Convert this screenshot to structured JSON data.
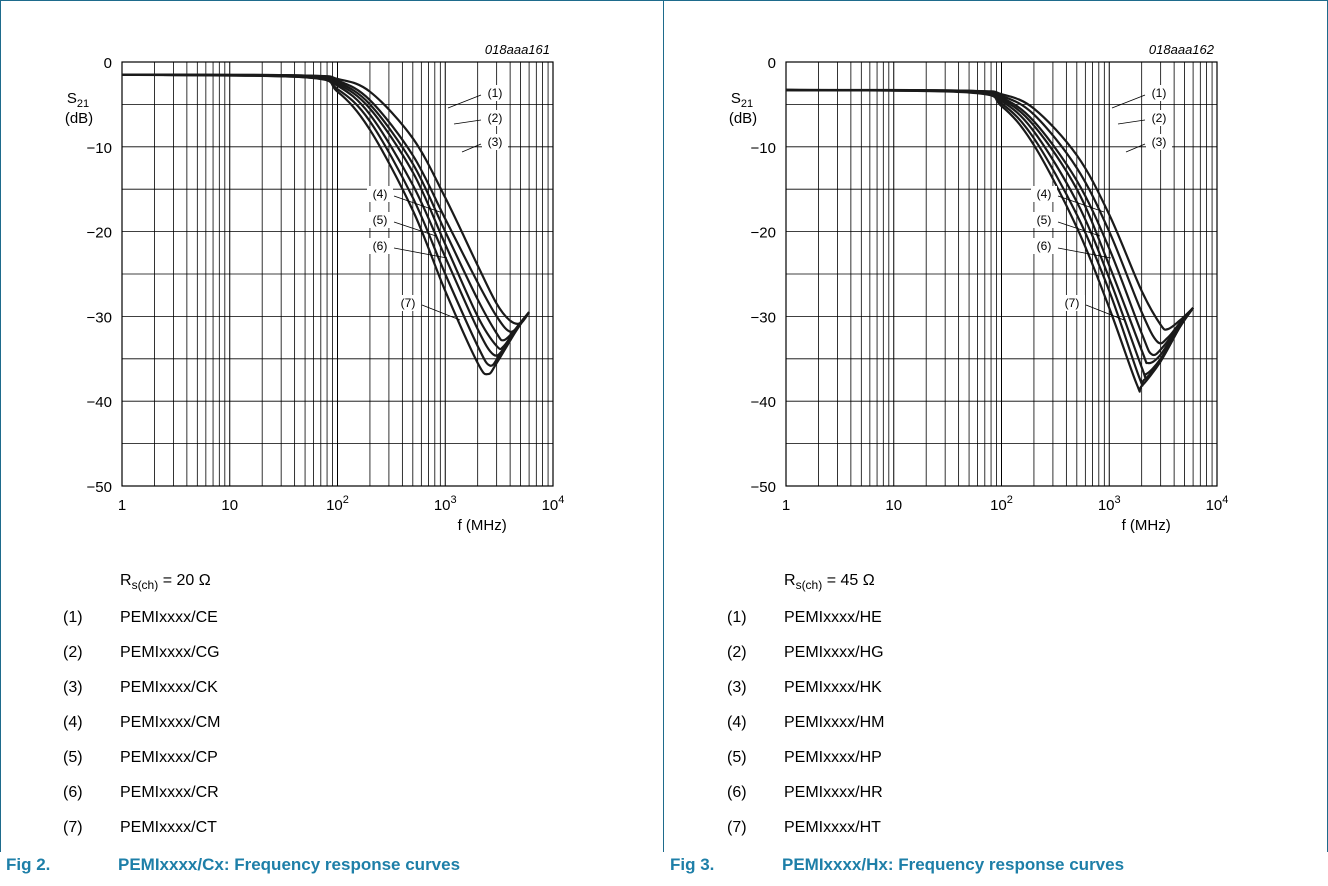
{
  "panels": [
    {
      "code": "018aaa161",
      "rs_value": "= 20 Ω",
      "figure": "Fig 2.",
      "title": "PEMIxxxx/Cx: Frequency response curves",
      "legend": [
        {
          "num": "(1)",
          "name": "PEMIxxxx/CE"
        },
        {
          "num": "(2)",
          "name": "PEMIxxxx/CG"
        },
        {
          "num": "(3)",
          "name": "PEMIxxxx/CK"
        },
        {
          "num": "(4)",
          "name": "PEMIxxxx/CM"
        },
        {
          "num": "(5)",
          "name": "PEMIxxxx/CP"
        },
        {
          "num": "(6)",
          "name": "PEMIxxxx/CR"
        },
        {
          "num": "(7)",
          "name": "PEMIxxxx/CT"
        }
      ]
    },
    {
      "code": "018aaa162",
      "rs_value": "= 45 Ω",
      "figure": "Fig 3.",
      "title": "PEMIxxxx/Hx: Frequency response curves",
      "legend": [
        {
          "num": "(1)",
          "name": "PEMIxxxx/HE"
        },
        {
          "num": "(2)",
          "name": "PEMIxxxx/HG"
        },
        {
          "num": "(3)",
          "name": "PEMIxxxx/HK"
        },
        {
          "num": "(4)",
          "name": "PEMIxxxx/HM"
        },
        {
          "num": "(5)",
          "name": "PEMIxxxx/HP"
        },
        {
          "num": "(6)",
          "name": "PEMIxxxx/HR"
        },
        {
          "num": "(7)",
          "name": "PEMIxxxx/HT"
        }
      ]
    }
  ],
  "common": {
    "rs_symbol": "R",
    "rs_sub": "s(ch)"
  },
  "chart_data": [
    {
      "type": "line",
      "x_scale": "log",
      "xlim": [
        1,
        10000
      ],
      "ylim": [
        -50,
        0
      ],
      "xlabel": "f (MHz)",
      "ylabel": "S21 (dB)",
      "xticks": [
        "1",
        "10",
        "10^2",
        "10^3",
        "10^4"
      ],
      "yticks": [
        "0",
        "−10",
        "−20",
        "−30",
        "−40",
        "−50"
      ],
      "grid": true,
      "series": [
        {
          "name": "(1)",
          "points": [
            [
              1,
              -1.5
            ],
            [
              50,
              -1.6
            ],
            [
              100,
              -2
            ],
            [
              200,
              -3.5
            ],
            [
              500,
              -9
            ],
            [
              1000,
              -16
            ],
            [
              2000,
              -24
            ],
            [
              3000,
              -28.5
            ],
            [
              4000,
              -30.5
            ],
            [
              5000,
              -30.8
            ],
            [
              6000,
              -29.5
            ]
          ]
        },
        {
          "name": "(2)",
          "points": [
            [
              1,
              -1.5
            ],
            [
              50,
              -1.6
            ],
            [
              100,
              -2.2
            ],
            [
              200,
              -4.5
            ],
            [
              500,
              -11
            ],
            [
              1000,
              -18.5
            ],
            [
              2000,
              -26
            ],
            [
              3000,
              -30
            ],
            [
              4000,
              -31.8
            ],
            [
              5000,
              -30.8
            ],
            [
              6000,
              -29.5
            ]
          ]
        },
        {
          "name": "(3)",
          "points": [
            [
              1,
              -1.5
            ],
            [
              50,
              -1.6
            ],
            [
              100,
              -2.4
            ],
            [
              200,
              -5
            ],
            [
              500,
              -12
            ],
            [
              1000,
              -20
            ],
            [
              2000,
              -28
            ],
            [
              3000,
              -32
            ],
            [
              3500,
              -32.8
            ],
            [
              4500,
              -31.5
            ],
            [
              6000,
              -29.5
            ]
          ]
        },
        {
          "name": "(4)",
          "points": [
            [
              1,
              -1.5
            ],
            [
              50,
              -1.7
            ],
            [
              100,
              -2.6
            ],
            [
              200,
              -5.5
            ],
            [
              500,
              -13
            ],
            [
              1000,
              -21.5
            ],
            [
              2000,
              -30
            ],
            [
              3000,
              -33.5
            ],
            [
              3500,
              -33.5
            ],
            [
              4500,
              -31.5
            ],
            [
              6000,
              -29.5
            ]
          ]
        },
        {
          "name": "(5)",
          "points": [
            [
              1,
              -1.5
            ],
            [
              50,
              -1.7
            ],
            [
              100,
              -2.8
            ],
            [
              200,
              -6.2
            ],
            [
              500,
              -14.5
            ],
            [
              1000,
              -23
            ],
            [
              2000,
              -31.5
            ],
            [
              2800,
              -34.5
            ],
            [
              3500,
              -33.8
            ],
            [
              4500,
              -31.5
            ],
            [
              6000,
              -29.5
            ]
          ]
        },
        {
          "name": "(6)",
          "points": [
            [
              1,
              -1.5
            ],
            [
              50,
              -1.8
            ],
            [
              100,
              -3.2
            ],
            [
              200,
              -7
            ],
            [
              500,
              -16
            ],
            [
              1000,
              -25
            ],
            [
              2000,
              -33.5
            ],
            [
              2600,
              -35.8
            ],
            [
              3200,
              -34.5
            ],
            [
              4500,
              -31.5
            ],
            [
              6000,
              -29.5
            ]
          ]
        },
        {
          "name": "(7)",
          "points": [
            [
              1,
              -1.5
            ],
            [
              50,
              -1.8
            ],
            [
              100,
              -3.5
            ],
            [
              200,
              -8
            ],
            [
              500,
              -17.5
            ],
            [
              1000,
              -27
            ],
            [
              2000,
              -35.5
            ],
            [
              2500,
              -36.8
            ],
            [
              3000,
              -35.5
            ],
            [
              4500,
              -31.8
            ],
            [
              6000,
              -29.5
            ]
          ]
        }
      ]
    },
    {
      "type": "line",
      "x_scale": "log",
      "xlim": [
        1,
        10000
      ],
      "ylim": [
        -50,
        0
      ],
      "xlabel": "f (MHz)",
      "ylabel": "S21 (dB)",
      "xticks": [
        "1",
        "10",
        "10^2",
        "10^3",
        "10^4"
      ],
      "yticks": [
        "0",
        "−10",
        "−20",
        "−30",
        "−40",
        "−50"
      ],
      "grid": true,
      "series": [
        {
          "name": "(1)",
          "points": [
            [
              1,
              -3.3
            ],
            [
              50,
              -3.4
            ],
            [
              100,
              -3.8
            ],
            [
              200,
              -5.5
            ],
            [
              500,
              -11
            ],
            [
              1000,
              -18
            ],
            [
              2000,
              -27
            ],
            [
              3000,
              -31
            ],
            [
              3500,
              -31.5
            ],
            [
              4500,
              -30.5
            ],
            [
              6000,
              -29
            ]
          ]
        },
        {
          "name": "(2)",
          "points": [
            [
              1,
              -3.3
            ],
            [
              50,
              -3.4
            ],
            [
              100,
              -4
            ],
            [
              200,
              -6.2
            ],
            [
              500,
              -12.5
            ],
            [
              1000,
              -20
            ],
            [
              2000,
              -29.5
            ],
            [
              2800,
              -33
            ],
            [
              3500,
              -32.5
            ],
            [
              4500,
              -30.8
            ],
            [
              6000,
              -29
            ]
          ]
        },
        {
          "name": "(3)",
          "points": [
            [
              1,
              -3.3
            ],
            [
              50,
              -3.4
            ],
            [
              100,
              -4.2
            ],
            [
              200,
              -7
            ],
            [
              500,
              -14
            ],
            [
              1000,
              -22
            ],
            [
              2000,
              -32
            ],
            [
              2500,
              -34.5
            ],
            [
              3200,
              -33.5
            ],
            [
              4500,
              -31
            ],
            [
              6000,
              -29
            ]
          ]
        },
        {
          "name": "(4)",
          "points": [
            [
              1,
              -3.3
            ],
            [
              50,
              -3.5
            ],
            [
              100,
              -4.4
            ],
            [
              200,
              -7.5
            ],
            [
              500,
              -15
            ],
            [
              1000,
              -24
            ],
            [
              2000,
              -34
            ],
            [
              2300,
              -35.5
            ],
            [
              3000,
              -34.5
            ],
            [
              4500,
              -31
            ],
            [
              6000,
              -29
            ]
          ]
        },
        {
          "name": "(5)",
          "points": [
            [
              1,
              -3.3
            ],
            [
              50,
              -3.5
            ],
            [
              100,
              -4.6
            ],
            [
              200,
              -8.2
            ],
            [
              500,
              -16.5
            ],
            [
              1000,
              -25.5
            ],
            [
              2000,
              -36
            ],
            [
              2200,
              -36.8
            ],
            [
              3000,
              -35
            ],
            [
              4500,
              -31.2
            ],
            [
              6000,
              -29
            ]
          ]
        },
        {
          "name": "(6)",
          "points": [
            [
              1,
              -3.3
            ],
            [
              50,
              -3.5
            ],
            [
              100,
              -4.9
            ],
            [
              200,
              -9
            ],
            [
              500,
              -18
            ],
            [
              1000,
              -27
            ],
            [
              1900,
              -37.2
            ],
            [
              2100,
              -37.5
            ],
            [
              3000,
              -35.2
            ],
            [
              4500,
              -31.3
            ],
            [
              6000,
              -29
            ]
          ]
        },
        {
          "name": "(7)",
          "points": [
            [
              1,
              -3.3
            ],
            [
              50,
              -3.6
            ],
            [
              100,
              -5.2
            ],
            [
              200,
              -9.8
            ],
            [
              500,
              -19.5
            ],
            [
              1000,
              -29
            ],
            [
              1800,
              -38
            ],
            [
              2000,
              -38.2
            ],
            [
              3000,
              -35.3
            ],
            [
              4500,
              -31.3
            ],
            [
              6000,
              -29
            ]
          ]
        }
      ]
    }
  ],
  "colors": {
    "frame": "#1e6b8c",
    "caption": "#1e7fa8",
    "grid": "#000000",
    "curve": "#1a1a1a"
  }
}
